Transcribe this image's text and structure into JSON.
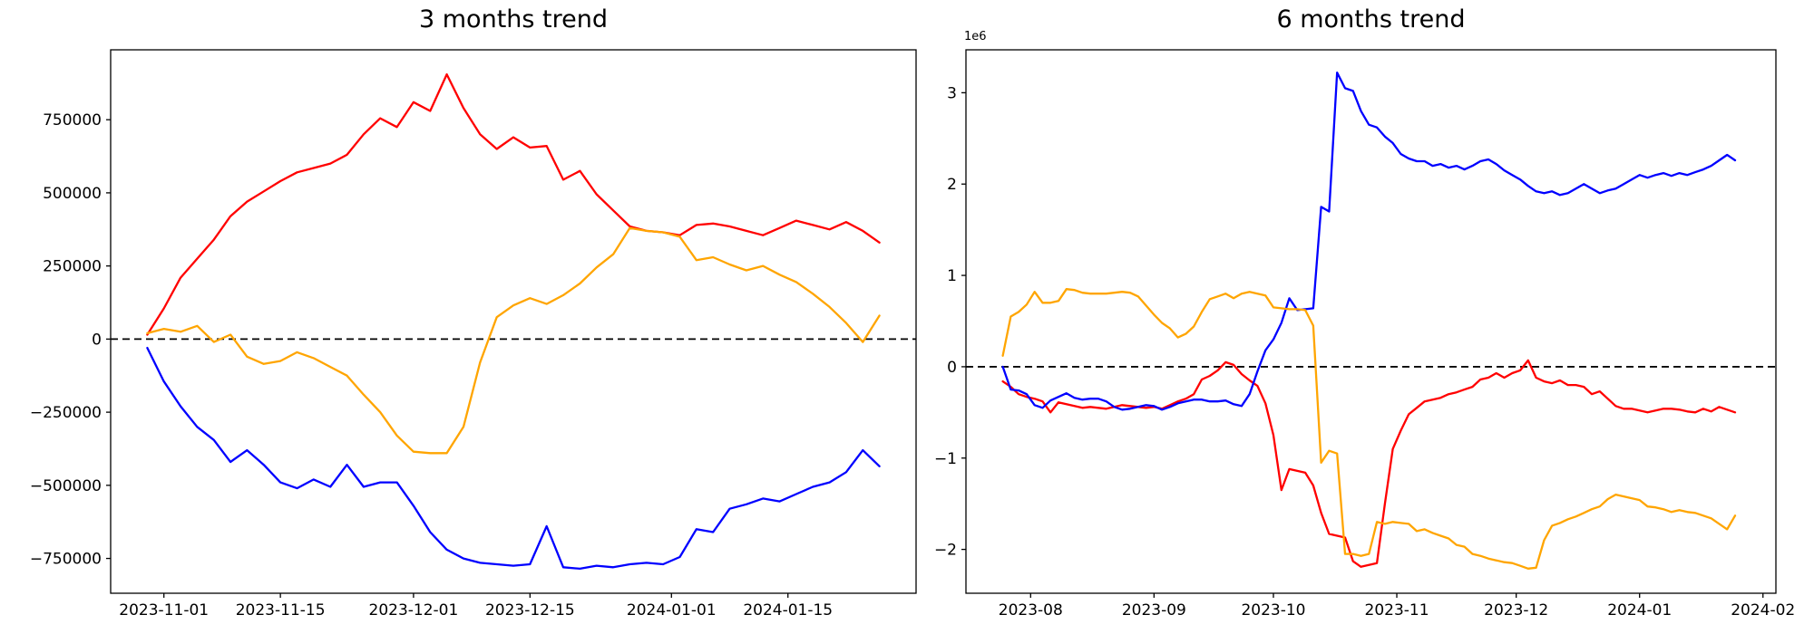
{
  "page": {
    "background": "#ffffff"
  },
  "chart_data": [
    {
      "type": "line",
      "title": "3 months trend",
      "x_start_date": "2023-10-30",
      "x_step_days": 2,
      "xlim": [
        -4.4,
        92.4
      ],
      "ylim": [
        -869000,
        989000
      ],
      "grid": false,
      "legend": "none",
      "zero_line": {
        "color": "#000000",
        "style": "dashed"
      },
      "x_ticks": [
        {
          "d": 2,
          "label": "2023-11-01"
        },
        {
          "d": 16,
          "label": "2023-11-15"
        },
        {
          "d": 32,
          "label": "2023-12-01"
        },
        {
          "d": 46,
          "label": "2023-12-15"
        },
        {
          "d": 63,
          "label": "2024-01-01"
        },
        {
          "d": 77,
          "label": "2024-01-15"
        }
      ],
      "y_ticks": [
        {
          "v": 750000,
          "label": "750000"
        },
        {
          "v": 500000,
          "label": "500000"
        },
        {
          "v": 250000,
          "label": "250000"
        },
        {
          "v": 0,
          "label": "0"
        },
        {
          "v": -250000,
          "label": "−250000"
        },
        {
          "v": -500000,
          "label": "−500000"
        },
        {
          "v": -750000,
          "label": "−750000"
        }
      ],
      "series": [
        {
          "name": "red",
          "color": "#ff0000",
          "values": [
            15000,
            105000,
            210000,
            275000,
            340000,
            420000,
            470000,
            505000,
            540000,
            570000,
            585000,
            600000,
            630000,
            700000,
            755000,
            725000,
            810000,
            780000,
            905000,
            790000,
            700000,
            650000,
            690000,
            655000,
            660000,
            545000,
            575000,
            495000,
            440000,
            385000,
            370000,
            365000,
            355000,
            390000,
            395000,
            385000,
            370000,
            355000,
            380000,
            405000,
            390000,
            375000,
            400000,
            370000,
            330000
          ]
        },
        {
          "name": "blue",
          "color": "#0000ff",
          "values": [
            -30000,
            -145000,
            -230000,
            -300000,
            -345000,
            -420000,
            -380000,
            -430000,
            -490000,
            -510000,
            -480000,
            -505000,
            -430000,
            -505000,
            -490000,
            -490000,
            -570000,
            -660000,
            -720000,
            -750000,
            -765000,
            -770000,
            -775000,
            -770000,
            -640000,
            -780000,
            -785000,
            -775000,
            -780000,
            -770000,
            -765000,
            -770000,
            -745000,
            -650000,
            -660000,
            -580000,
            -565000,
            -545000,
            -555000,
            -530000,
            -505000,
            -490000,
            -455000,
            -380000,
            -435000
          ]
        },
        {
          "name": "orange",
          "color": "#ffa500",
          "values": [
            20000,
            35000,
            25000,
            45000,
            -10000,
            15000,
            -60000,
            -85000,
            -75000,
            -45000,
            -65000,
            -95000,
            -125000,
            -190000,
            -250000,
            -330000,
            -385000,
            -390000,
            -390000,
            -300000,
            -80000,
            75000,
            115000,
            140000,
            120000,
            150000,
            190000,
            245000,
            290000,
            380000,
            370000,
            365000,
            350000,
            270000,
            280000,
            255000,
            235000,
            250000,
            220000,
            195000,
            155000,
            110000,
            55000,
            -10000,
            80000
          ]
        }
      ]
    },
    {
      "type": "line",
      "title": "6 months trend",
      "offset_label": "1e6",
      "x_start_date": "2023-07-25",
      "x_step_days": 2,
      "xlim": [
        -9.25,
        194.25
      ],
      "ylim": [
        -2480000,
        3470000
      ],
      "grid": false,
      "legend": "none",
      "zero_line": {
        "color": "#000000",
        "style": "dashed"
      },
      "x_ticks": [
        {
          "d": 7,
          "label": "2023-08"
        },
        {
          "d": 38,
          "label": "2023-09"
        },
        {
          "d": 68,
          "label": "2023-10"
        },
        {
          "d": 99,
          "label": "2023-11"
        },
        {
          "d": 129,
          "label": "2023-12"
        },
        {
          "d": 160,
          "label": "2024-01"
        },
        {
          "d": 191,
          "label": "2024-02"
        }
      ],
      "y_ticks": [
        {
          "v": 3000000,
          "label": "3"
        },
        {
          "v": 2000000,
          "label": "2"
        },
        {
          "v": 1000000,
          "label": "1"
        },
        {
          "v": 0,
          "label": "0"
        },
        {
          "v": -1000000,
          "label": "−1"
        },
        {
          "v": -2000000,
          "label": "−2"
        }
      ],
      "series": [
        {
          "name": "red",
          "color": "#ff0000",
          "values": [
            -160000,
            -220000,
            -300000,
            -330000,
            -350000,
            -380000,
            -500000,
            -390000,
            -410000,
            -430000,
            -450000,
            -440000,
            -450000,
            -460000,
            -440000,
            -420000,
            -430000,
            -440000,
            -450000,
            -440000,
            -460000,
            -420000,
            -380000,
            -350000,
            -300000,
            -140000,
            -100000,
            -40000,
            50000,
            20000,
            -80000,
            -150000,
            -210000,
            -400000,
            -750000,
            -1350000,
            -1120000,
            -1140000,
            -1160000,
            -1300000,
            -1600000,
            -1830000,
            -1850000,
            -1870000,
            -2130000,
            -2190000,
            -2170000,
            -2150000,
            -1500000,
            -900000,
            -700000,
            -520000,
            -450000,
            -380000,
            -360000,
            -340000,
            -300000,
            -280000,
            -250000,
            -220000,
            -140000,
            -120000,
            -70000,
            -120000,
            -70000,
            -40000,
            70000,
            -120000,
            -160000,
            -180000,
            -150000,
            -200000,
            -200000,
            -220000,
            -300000,
            -270000,
            -350000,
            -430000,
            -460000,
            -460000,
            -480000,
            -500000,
            -480000,
            -460000,
            -460000,
            -470000,
            -490000,
            -500000,
            -460000,
            -490000,
            -440000,
            -470000,
            -500000
          ]
        },
        {
          "name": "blue",
          "color": "#0000ff",
          "values": [
            0,
            -250000,
            -260000,
            -300000,
            -420000,
            -450000,
            -370000,
            -330000,
            -290000,
            -340000,
            -360000,
            -350000,
            -350000,
            -380000,
            -440000,
            -470000,
            -460000,
            -440000,
            -420000,
            -430000,
            -470000,
            -440000,
            -400000,
            -380000,
            -360000,
            -360000,
            -380000,
            -380000,
            -370000,
            -410000,
            -430000,
            -300000,
            -50000,
            180000,
            300000,
            480000,
            750000,
            620000,
            630000,
            640000,
            1750000,
            1700000,
            3220000,
            3050000,
            3020000,
            2800000,
            2650000,
            2620000,
            2520000,
            2450000,
            2330000,
            2280000,
            2250000,
            2250000,
            2200000,
            2220000,
            2180000,
            2200000,
            2160000,
            2200000,
            2250000,
            2270000,
            2220000,
            2150000,
            2100000,
            2050000,
            1980000,
            1920000,
            1900000,
            1920000,
            1880000,
            1900000,
            1950000,
            2000000,
            1950000,
            1900000,
            1930000,
            1950000,
            2000000,
            2050000,
            2100000,
            2070000,
            2100000,
            2120000,
            2090000,
            2120000,
            2100000,
            2130000,
            2160000,
            2200000,
            2260000,
            2320000,
            2260000
          ]
        },
        {
          "name": "orange",
          "color": "#ffa500",
          "values": [
            120000,
            550000,
            600000,
            680000,
            820000,
            700000,
            700000,
            720000,
            850000,
            840000,
            810000,
            800000,
            800000,
            800000,
            810000,
            820000,
            810000,
            770000,
            670000,
            570000,
            480000,
            420000,
            320000,
            360000,
            440000,
            600000,
            740000,
            770000,
            800000,
            750000,
            800000,
            820000,
            800000,
            780000,
            650000,
            640000,
            630000,
            630000,
            620000,
            450000,
            -1050000,
            -920000,
            -950000,
            -2050000,
            -2050000,
            -2070000,
            -2050000,
            -1700000,
            -1720000,
            -1700000,
            -1710000,
            -1720000,
            -1800000,
            -1780000,
            -1820000,
            -1850000,
            -1880000,
            -1950000,
            -1970000,
            -2050000,
            -2070000,
            -2100000,
            -2120000,
            -2140000,
            -2150000,
            -2180000,
            -2210000,
            -2200000,
            -1900000,
            -1740000,
            -1710000,
            -1670000,
            -1640000,
            -1600000,
            -1560000,
            -1530000,
            -1450000,
            -1400000,
            -1420000,
            -1440000,
            -1460000,
            -1530000,
            -1540000,
            -1560000,
            -1590000,
            -1570000,
            -1590000,
            -1600000,
            -1630000,
            -1660000,
            -1720000,
            -1780000,
            -1630000
          ]
        }
      ]
    }
  ]
}
